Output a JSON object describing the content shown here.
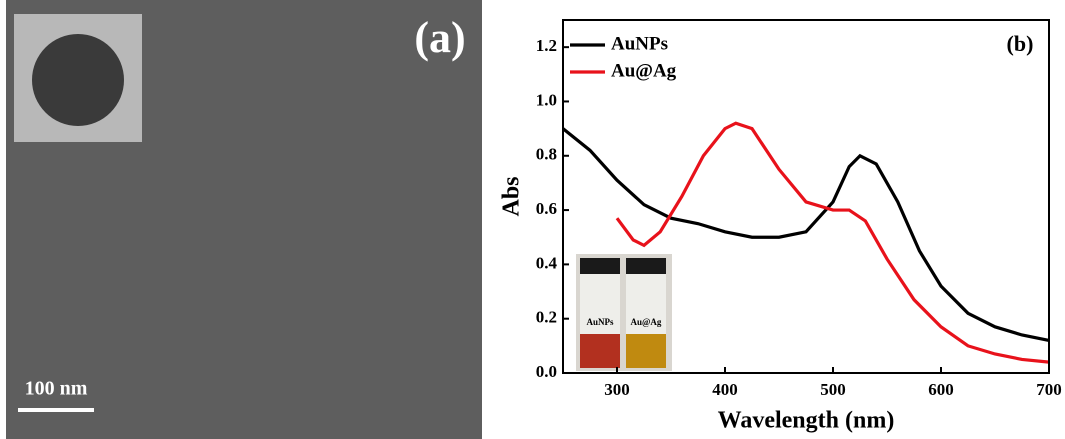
{
  "image_panel": {
    "label": "(a)",
    "scale_bar": "100 nm"
  },
  "chart_data": {
    "type": "line",
    "panel_label": "(b)",
    "x_label": "Wavelength (nm)",
    "y_label": "Abs",
    "inset_labels": [
      "AuNPs",
      "Au@Ag"
    ],
    "xlim": [
      250,
      700
    ],
    "xticks": [
      300,
      400,
      500,
      600,
      700
    ],
    "ylim": [
      0,
      1.3
    ],
    "yticks": [
      {
        "value": 0,
        "label": "0.0"
      },
      0.2,
      0.4,
      0.6,
      0.8,
      {
        "value": 1,
        "label": "1.0"
      },
      1.2
    ],
    "legend": "upper left",
    "series": [
      {
        "name": "AuNPs",
        "color": "#000000",
        "x": [
          250,
          275,
          300,
          325,
          350,
          375,
          400,
          425,
          450,
          475,
          500,
          515,
          525,
          540,
          560,
          580,
          600,
          625,
          650,
          675,
          700
        ],
        "values": [
          0.9,
          0.82,
          0.71,
          0.62,
          0.57,
          0.55,
          0.52,
          0.5,
          0.5,
          0.52,
          0.63,
          0.76,
          0.8,
          0.77,
          0.63,
          0.45,
          0.32,
          0.22,
          0.17,
          0.14,
          0.12
        ]
      },
      {
        "name": "Au@Ag",
        "color": "#e8121b",
        "x": [
          300,
          315,
          325,
          340,
          360,
          380,
          400,
          410,
          425,
          450,
          475,
          500,
          515,
          530,
          550,
          575,
          600,
          625,
          650,
          675,
          700
        ],
        "values": [
          0.57,
          0.49,
          0.47,
          0.52,
          0.65,
          0.8,
          0.9,
          0.92,
          0.9,
          0.75,
          0.63,
          0.6,
          0.6,
          0.56,
          0.42,
          0.27,
          0.17,
          0.1,
          0.07,
          0.05,
          0.04
        ]
      }
    ]
  }
}
